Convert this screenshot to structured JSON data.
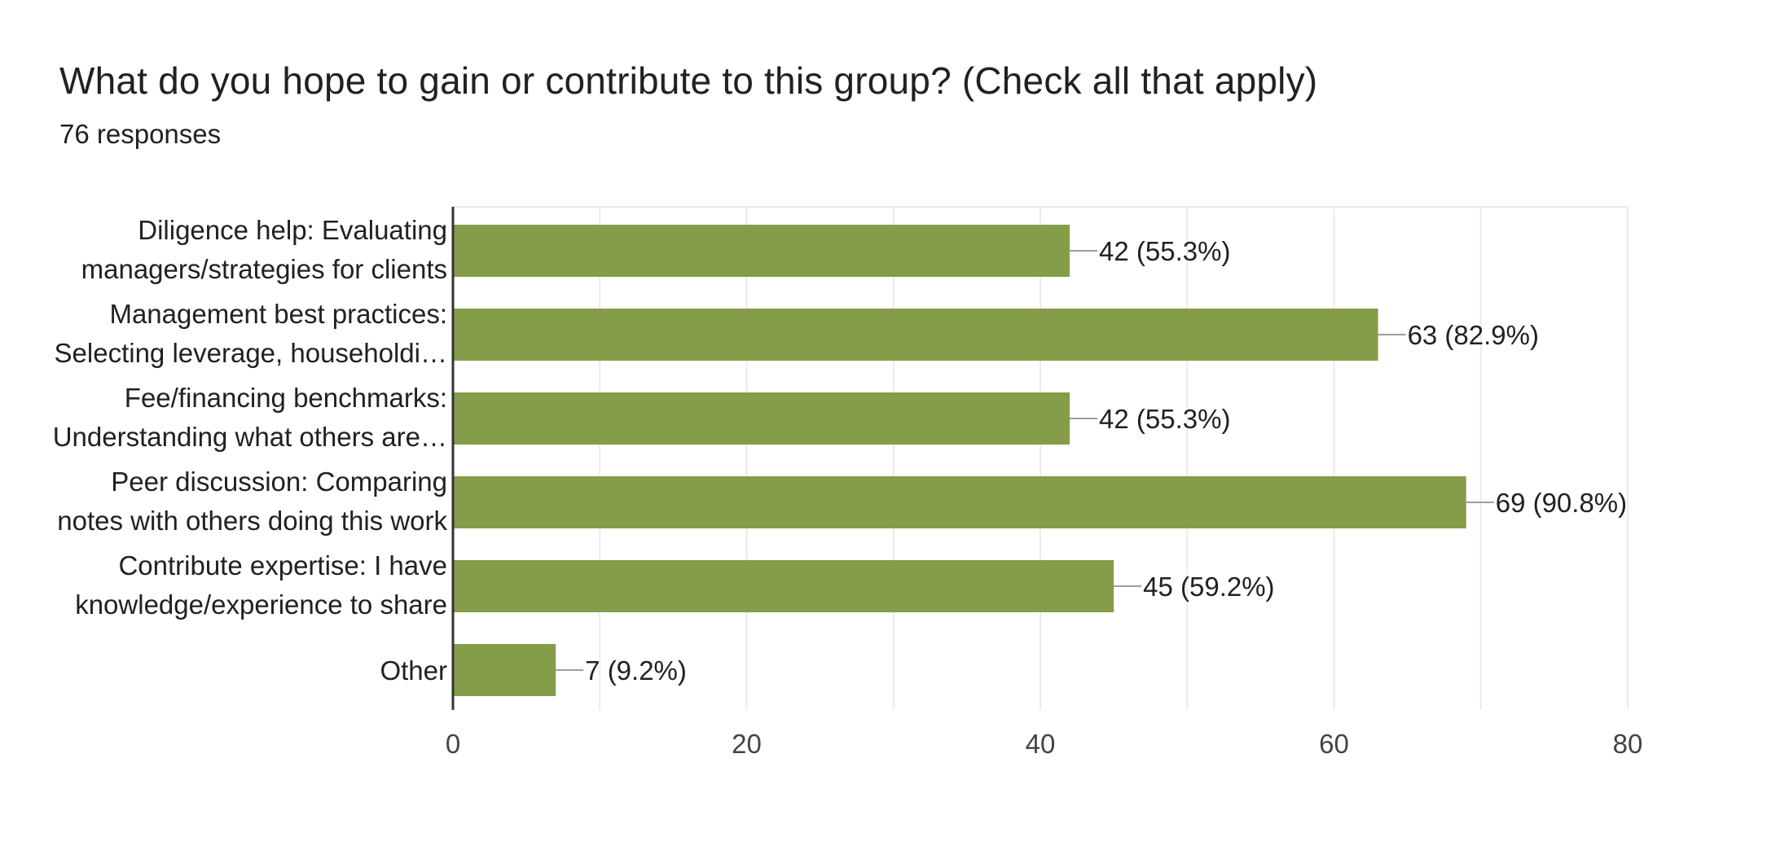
{
  "header": {
    "title": "What do you hope to gain or contribute to this group? (Check all that apply)",
    "subtitle": "76 responses"
  },
  "colors": {
    "bar": "#859c48",
    "grid": "#ebebeb",
    "axis": "#333333",
    "leader": "#9e9e9e",
    "text": "#202124",
    "tick_text": "#444444"
  },
  "chart_data": {
    "type": "bar",
    "orientation": "horizontal",
    "categories": [
      [
        "Diligence help: Evaluating",
        "managers/strategies for clients"
      ],
      [
        "Management best practices:",
        "Selecting leverage, householdi…"
      ],
      [
        "Fee/financing benchmarks:",
        "Understanding what others are…"
      ],
      [
        "Peer discussion: Comparing",
        "notes with others doing this work"
      ],
      [
        "Contribute expertise: I have",
        "knowledge/experience to share"
      ],
      [
        "Other"
      ]
    ],
    "values": [
      42,
      63,
      42,
      69,
      45,
      7
    ],
    "data_labels": [
      "42 (55.3%)",
      "63 (82.9%)",
      "42 (55.3%)",
      "69 (90.8%)",
      "45 (59.2%)",
      "7 (9.2%)"
    ],
    "xlim": [
      0,
      80
    ],
    "xticks": [
      0,
      20,
      40,
      60,
      80
    ],
    "tick_labels": [
      "0",
      "20",
      "40",
      "60",
      "80"
    ],
    "grid": true
  }
}
